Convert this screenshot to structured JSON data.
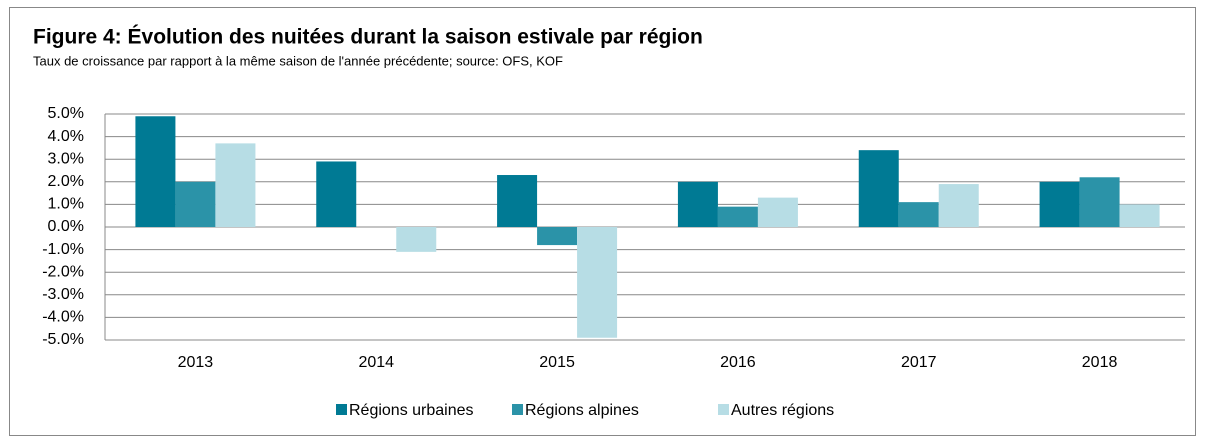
{
  "chart_data": {
    "type": "bar",
    "title": "Figure 4: Évolution des nuitées durant la saison estivale par région",
    "subtitle": "Taux de croissance par rapport à la même saison de l'année précédente; source: OFS, KOF",
    "categories": [
      "2013",
      "2014",
      "2015",
      "2016",
      "2017",
      "2018"
    ],
    "series": [
      {
        "name": "Régions urbaines",
        "color": "#007a94",
        "values": [
          4.9,
          2.9,
          2.3,
          2.0,
          3.4,
          2.0
        ]
      },
      {
        "name": "Régions alpines",
        "color": "#2b93a8",
        "values": [
          2.0,
          0.0,
          -0.8,
          0.9,
          1.1,
          2.2
        ]
      },
      {
        "name": "Autres régions",
        "color": "#b7dde5",
        "values": [
          3.7,
          -1.1,
          -4.9,
          1.3,
          1.9,
          1.0
        ]
      }
    ],
    "ylim": [
      -5,
      5
    ],
    "yticks": [
      {
        "value": -5,
        "label": "-5.0%"
      },
      {
        "value": -4,
        "label": "-4.0%"
      },
      {
        "value": -3,
        "label": "-3.0%"
      },
      {
        "value": -2,
        "label": "-2.0%"
      },
      {
        "value": -1,
        "label": "-1.0%"
      },
      {
        "value": 0,
        "label": "0.0%"
      },
      {
        "value": 1,
        "label": "1.0%"
      },
      {
        "value": 2,
        "label": "2.0%"
      },
      {
        "value": 3,
        "label": "3.0%"
      },
      {
        "value": 4,
        "label": "4.0%"
      },
      {
        "value": 5,
        "label": "5.0%"
      }
    ],
    "grid": true,
    "legend": "bottom"
  }
}
